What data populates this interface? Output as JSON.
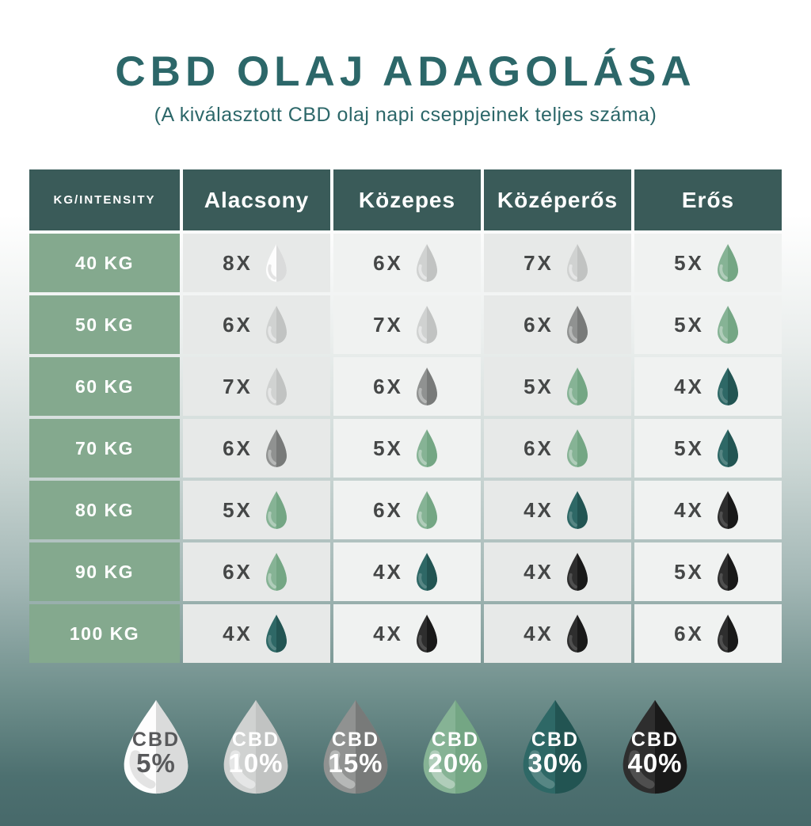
{
  "title": "CBD OLAJ ADAGOLÁSA",
  "subtitle": "(A kiválasztott CBD olaj napi cseppjeinek teljes száma)",
  "colors": {
    "title_text": "#2c6769",
    "header_bg": "#3a5b59",
    "row_label_bg": "#84a98e",
    "cell_shade_a": "#e7e9e8",
    "cell_shade_b": "#f0f2f1",
    "count_text": "#454747",
    "background_top": "#ffffff",
    "background_bottom": "#47696a"
  },
  "drop_styles": {
    "5%": {
      "left": "#fdfdfd",
      "right": "#dadbdb",
      "shine": "rgba(0,0,0,0.10)",
      "text": "#58595b"
    },
    "10%": {
      "left": "#d0d2d1",
      "right": "#c1c3c2",
      "shine": "rgba(255,255,255,0.45)",
      "text": "#ffffff"
    },
    "15%": {
      "left": "#909291",
      "right": "#787a79",
      "shine": "rgba(255,255,255,0.35)",
      "text": "#ffffff"
    },
    "20%": {
      "left": "#86b395",
      "right": "#74a684",
      "shine": "rgba(255,255,255,0.35)",
      "text": "#ffffff"
    },
    "30%": {
      "left": "#2e6866",
      "right": "#225452",
      "shine": "rgba(255,255,255,0.20)",
      "text": "#ffffff"
    },
    "40%": {
      "left": "#2e2e2e",
      "right": "#191919",
      "shine": "rgba(255,255,255,0.16)",
      "text": "#ffffff"
    }
  },
  "chart_data": {
    "type": "table",
    "title": "CBD OLAJ ADAGOLÁSA",
    "subtitle": "(A kiválasztott CBD olaj napi cseppjeinek teljes száma)",
    "corner_label": "KG/INTENSITY",
    "columns": [
      "Alacsony",
      "Közepes",
      "Középerős",
      "Erős"
    ],
    "rows": [
      {
        "label": "40 KG",
        "cells": [
          {
            "count": "8X",
            "cbd": "5%"
          },
          {
            "count": "6X",
            "cbd": "10%"
          },
          {
            "count": "7X",
            "cbd": "10%"
          },
          {
            "count": "5X",
            "cbd": "20%"
          }
        ]
      },
      {
        "label": "50 KG",
        "cells": [
          {
            "count": "6X",
            "cbd": "10%"
          },
          {
            "count": "7X",
            "cbd": "10%"
          },
          {
            "count": "6X",
            "cbd": "15%"
          },
          {
            "count": "5X",
            "cbd": "20%"
          }
        ]
      },
      {
        "label": "60 KG",
        "cells": [
          {
            "count": "7X",
            "cbd": "10%"
          },
          {
            "count": "6X",
            "cbd": "15%"
          },
          {
            "count": "5X",
            "cbd": "20%"
          },
          {
            "count": "4X",
            "cbd": "30%"
          }
        ]
      },
      {
        "label": "70 KG",
        "cells": [
          {
            "count": "6X",
            "cbd": "15%"
          },
          {
            "count": "5X",
            "cbd": "20%"
          },
          {
            "count": "6X",
            "cbd": "20%"
          },
          {
            "count": "5X",
            "cbd": "30%"
          }
        ]
      },
      {
        "label": "80 KG",
        "cells": [
          {
            "count": "5X",
            "cbd": "20%"
          },
          {
            "count": "6X",
            "cbd": "20%"
          },
          {
            "count": "4X",
            "cbd": "30%"
          },
          {
            "count": "4X",
            "cbd": "40%"
          }
        ]
      },
      {
        "label": "90 KG",
        "cells": [
          {
            "count": "6X",
            "cbd": "20%"
          },
          {
            "count": "4X",
            "cbd": "30%"
          },
          {
            "count": "4X",
            "cbd": "40%"
          },
          {
            "count": "5X",
            "cbd": "40%"
          }
        ]
      },
      {
        "label": "100 KG",
        "cells": [
          {
            "count": "4X",
            "cbd": "30%"
          },
          {
            "count": "4X",
            "cbd": "40%"
          },
          {
            "count": "4X",
            "cbd": "40%"
          },
          {
            "count": "6X",
            "cbd": "40%"
          }
        ]
      }
    ],
    "legend": [
      {
        "line1": "CBD",
        "line2": "5%",
        "cbd": "5%"
      },
      {
        "line1": "CBD",
        "line2": "10%",
        "cbd": "10%"
      },
      {
        "line1": "CBD",
        "line2": "15%",
        "cbd": "15%"
      },
      {
        "line1": "CBD",
        "line2": "20%",
        "cbd": "20%"
      },
      {
        "line1": "CBD",
        "line2": "30%",
        "cbd": "30%"
      },
      {
        "line1": "CBD",
        "line2": "40%",
        "cbd": "40%"
      }
    ]
  }
}
